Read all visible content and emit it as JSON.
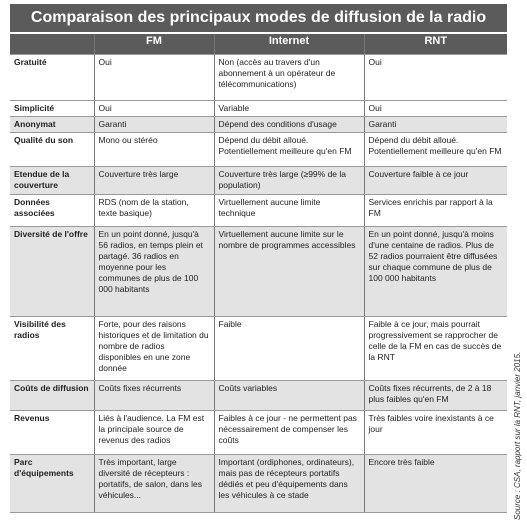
{
  "title": "Comparaison des principaux modes de diffusion de la radio",
  "table": {
    "header": [
      "FM",
      "Internet",
      "RNT"
    ],
    "rows": [
      [
        "Gratuité",
        "Oui",
        "Non (accès au travers d'un abonnement à un opérateur de télécommunications)",
        "Oui"
      ],
      [
        "Simplicité",
        "Oui",
        "Variable",
        "Oui"
      ],
      [
        "Anonymat",
        "Garanti",
        "Dépend des conditions d'usage",
        "Garanti"
      ],
      [
        "Qualité du son",
        "Mono ou stéréo",
        "Dépend du débit alloué. Potentiellement meilleure qu'en FM",
        "Dépend du débit alloué. Potentiellement meilleure qu'en FM"
      ],
      [
        "Etendue de la couverture",
        "Couverture très large",
        "Couverture très large (≥99% de la population)",
        "Couverture faible à ce jour"
      ],
      [
        "Données associées",
        "RDS (nom de la station, texte basique)",
        "Virtuellement aucune limite technique",
        "Services enrichis par rapport à la FM"
      ],
      [
        "Diversité de l'offre",
        "En un point donné, jusqu'à 56 radios, en temps plein et partagé. 36 radios en moyenne pour les communes de plus de 100 000 habitants",
        "Virtuellement aucune limite sur le nombre de programmes accessibles",
        "En un point donné, jusqu'à moins d'une centaine de radios. Plus de 52 radios pourraient être diffusées sur chaque commune de plus de 100 000 habitants"
      ],
      [
        "Visibilité des radios",
        "Forte, pour des raisons historiques et de limitation du nombre de radios disponibles en une zone donnée",
        "Faible",
        "Faible à ce jour, mais pourrait progressivement se rapprocher de celle de la FM en cas de succès de la RNT"
      ],
      [
        "Coûts de diffusion",
        "Coûts fixes récurrents",
        "Coûts variables",
        "Coûts fixes récurrents, de 2 à 18 plus faibles qu'en FM"
      ],
      [
        "Revenus",
        "Liés à l'audience. La FM est la principale source de revenus des radios",
        "Faibles à ce jour - ne permettent pas nécessairement de compenser les coûts",
        "Très faibles voire inexistants à ce jour"
      ],
      [
        "Parc d'équipements",
        "Très important, large diversité de récepteurs : portatifs, de salon, dans les véhicules...",
        "Important (ordiphones, ordinateurs), mais pas de récepteurs portatifs dédiés et peu d'équipements dans les véhicules à ce stade",
        "Encore très faible"
      ]
    ]
  },
  "source": "Source : CSA, rapport sur la RNT, janvier 2015."
}
